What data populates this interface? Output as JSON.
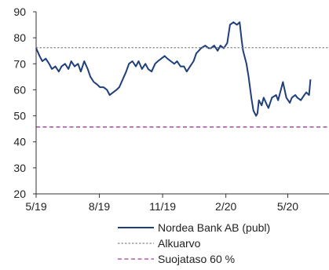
{
  "chart_data": {
    "type": "line",
    "title": "",
    "xlabel": "",
    "ylabel": "",
    "xlim": [
      "2019-05-01",
      "2020-06-30"
    ],
    "ylim": [
      20,
      90
    ],
    "y_ticks": [
      20,
      30,
      40,
      50,
      60,
      70,
      80,
      90
    ],
    "x_ticks": [
      {
        "date": "2019-05-01",
        "label": "5/19"
      },
      {
        "date": "2019-08-01",
        "label": "8/19"
      },
      {
        "date": "2019-11-01",
        "label": "11/19"
      },
      {
        "date": "2020-02-01",
        "label": "2/20"
      },
      {
        "date": "2020-05-01",
        "label": "5/20"
      }
    ],
    "grid": false,
    "legend_position": "bottom",
    "series": [
      {
        "name": "Nordea Bank AB (publ)",
        "style": "solid",
        "color": "#1f3f7a",
        "points": [
          [
            "2019-05-01",
            76
          ],
          [
            "2019-05-06",
            73
          ],
          [
            "2019-05-10",
            71
          ],
          [
            "2019-05-15",
            72
          ],
          [
            "2019-05-20",
            70
          ],
          [
            "2019-05-24",
            68
          ],
          [
            "2019-05-29",
            69
          ],
          [
            "2019-06-03",
            67
          ],
          [
            "2019-06-07",
            69
          ],
          [
            "2019-06-12",
            70
          ],
          [
            "2019-06-17",
            68
          ],
          [
            "2019-06-21",
            71
          ],
          [
            "2019-06-26",
            69
          ],
          [
            "2019-07-01",
            70
          ],
          [
            "2019-07-05",
            67
          ],
          [
            "2019-07-10",
            71
          ],
          [
            "2019-07-15",
            68
          ],
          [
            "2019-07-19",
            65
          ],
          [
            "2019-07-24",
            63
          ],
          [
            "2019-07-29",
            62
          ],
          [
            "2019-08-02",
            61
          ],
          [
            "2019-08-07",
            61
          ],
          [
            "2019-08-12",
            60
          ],
          [
            "2019-08-16",
            58
          ],
          [
            "2019-08-21",
            59
          ],
          [
            "2019-08-26",
            60
          ],
          [
            "2019-08-30",
            61
          ],
          [
            "2019-09-04",
            64
          ],
          [
            "2019-09-09",
            67
          ],
          [
            "2019-09-13",
            70
          ],
          [
            "2019-09-18",
            71
          ],
          [
            "2019-09-23",
            69
          ],
          [
            "2019-09-27",
            71
          ],
          [
            "2019-10-02",
            68
          ],
          [
            "2019-10-07",
            70
          ],
          [
            "2019-10-11",
            68
          ],
          [
            "2019-10-16",
            67
          ],
          [
            "2019-10-21",
            70
          ],
          [
            "2019-10-25",
            71
          ],
          [
            "2019-10-30",
            72
          ],
          [
            "2019-11-04",
            73
          ],
          [
            "2019-11-08",
            72
          ],
          [
            "2019-11-13",
            71
          ],
          [
            "2019-11-18",
            70
          ],
          [
            "2019-11-22",
            71
          ],
          [
            "2019-11-27",
            69
          ],
          [
            "2019-12-02",
            69
          ],
          [
            "2019-12-06",
            67
          ],
          [
            "2019-12-11",
            69
          ],
          [
            "2019-12-16",
            71
          ],
          [
            "2019-12-20",
            74
          ],
          [
            "2019-12-27",
            76
          ],
          [
            "2020-01-02",
            77
          ],
          [
            "2020-01-07",
            76
          ],
          [
            "2020-01-10",
            76
          ],
          [
            "2020-01-15",
            77
          ],
          [
            "2020-01-20",
            75
          ],
          [
            "2020-01-24",
            77
          ],
          [
            "2020-01-29",
            76
          ],
          [
            "2020-02-03",
            78
          ],
          [
            "2020-02-07",
            85
          ],
          [
            "2020-02-12",
            86
          ],
          [
            "2020-02-17",
            85
          ],
          [
            "2020-02-21",
            86
          ],
          [
            "2020-02-24",
            79
          ],
          [
            "2020-02-26",
            75
          ],
          [
            "2020-03-02",
            70
          ],
          [
            "2020-03-05",
            65
          ],
          [
            "2020-03-09",
            57
          ],
          [
            "2020-03-12",
            52
          ],
          [
            "2020-03-16",
            50
          ],
          [
            "2020-03-18",
            51
          ],
          [
            "2020-03-20",
            56
          ],
          [
            "2020-03-24",
            54
          ],
          [
            "2020-03-27",
            57
          ],
          [
            "2020-04-01",
            54
          ],
          [
            "2020-04-03",
            53
          ],
          [
            "2020-04-08",
            57
          ],
          [
            "2020-04-14",
            58
          ],
          [
            "2020-04-17",
            56
          ],
          [
            "2020-04-22",
            61
          ],
          [
            "2020-04-24",
            63
          ],
          [
            "2020-04-29",
            57
          ],
          [
            "2020-05-04",
            55
          ],
          [
            "2020-05-07",
            57
          ],
          [
            "2020-05-12",
            58
          ],
          [
            "2020-05-15",
            57
          ],
          [
            "2020-05-20",
            56
          ],
          [
            "2020-05-25",
            58
          ],
          [
            "2020-05-28",
            59
          ],
          [
            "2020-06-01",
            58
          ],
          [
            "2020-06-03",
            64
          ]
        ]
      },
      {
        "name": "Alkuarvo",
        "style": "dotted",
        "color": "#8a8a8a",
        "constant": 76.2
      },
      {
        "name": "Suojataso 60 %",
        "style": "dashed",
        "color": "#a03c9a",
        "constant": 45.7
      }
    ]
  }
}
